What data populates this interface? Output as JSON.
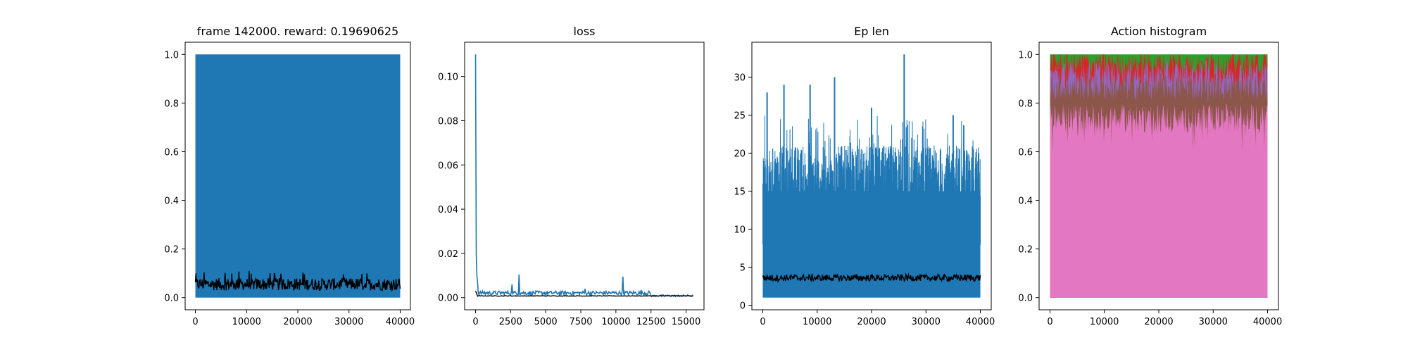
{
  "chart_data": [
    {
      "type": "line",
      "title": "frame 142000. reward: 0.19690625",
      "xlim": [
        0,
        40000
      ],
      "ylim": [
        0.0,
        1.0
      ],
      "xticks": [
        "0",
        "10000",
        "20000",
        "30000",
        "40000"
      ],
      "yticks": [
        "0.0",
        "0.2",
        "0.4",
        "0.6",
        "0.8",
        "1.0"
      ],
      "series": [
        {
          "color": "#1f77b4",
          "fill": "dense",
          "min": 0.0,
          "max": 1.0
        },
        {
          "color": "#000000",
          "mean": 0.055,
          "low": 0.02,
          "high": 0.11
        }
      ]
    },
    {
      "type": "line",
      "title": "loss",
      "xlim": [
        0,
        15500
      ],
      "ylim": [
        0.0,
        0.11
      ],
      "xticks": [
        "0",
        "2500",
        "5000",
        "7500",
        "10000",
        "12500",
        "15000"
      ],
      "yticks": [
        "0.00",
        "0.02",
        "0.04",
        "0.06",
        "0.08",
        "0.10"
      ],
      "series": [
        {
          "color": "#1f77b4",
          "peak": {
            "x": 0,
            "y": 0.11
          },
          "spikes": [
            {
              "x": 3100,
              "y": 0.0105
            },
            {
              "x": 10500,
              "y": 0.0095
            },
            {
              "x": 2600,
              "y": 0.006
            },
            {
              "x": 7800,
              "y": 0.004
            }
          ],
          "baseline": 0.002
        },
        {
          "color": "#000000",
          "baseline": 0.0008
        }
      ]
    },
    {
      "type": "line",
      "title": "Ep len",
      "xlim": [
        0,
        40000
      ],
      "ylim": [
        1,
        33
      ],
      "xticks": [
        "0",
        "10000",
        "20000",
        "30000",
        "40000"
      ],
      "yticks": [
        "0",
        "5",
        "10",
        "15",
        "20",
        "25",
        "30"
      ],
      "series": [
        {
          "color": "#1f77b4",
          "low": 1,
          "band_high": 15,
          "spikes": [
            {
              "x": 800,
              "y": 28
            },
            {
              "x": 3900,
              "y": 29
            },
            {
              "x": 8700,
              "y": 29
            },
            {
              "x": 13200,
              "y": 30
            },
            {
              "x": 26000,
              "y": 33
            },
            {
              "x": 20000,
              "y": 26
            },
            {
              "x": 35000,
              "y": 25
            }
          ]
        },
        {
          "color": "#000000",
          "mean": 3.6,
          "low": 3.0,
          "high": 4.3
        }
      ]
    },
    {
      "type": "area",
      "title": "Action histogram",
      "xlim": [
        0,
        40000
      ],
      "ylim": [
        0.0,
        1.0
      ],
      "xticks": [
        "0",
        "10000",
        "20000",
        "30000",
        "40000"
      ],
      "yticks": [
        "0.0",
        "0.2",
        "0.4",
        "0.6",
        "0.8",
        "1.0"
      ],
      "series": [
        {
          "color": "#e377c2",
          "cum": 0.75
        },
        {
          "color": "#8c564b",
          "cum": 0.88
        },
        {
          "color": "#9467bd",
          "cum": 0.93
        },
        {
          "color": "#d62728",
          "cum": 0.98
        },
        {
          "color": "#2ca02c",
          "cum": 1.0
        }
      ]
    }
  ]
}
